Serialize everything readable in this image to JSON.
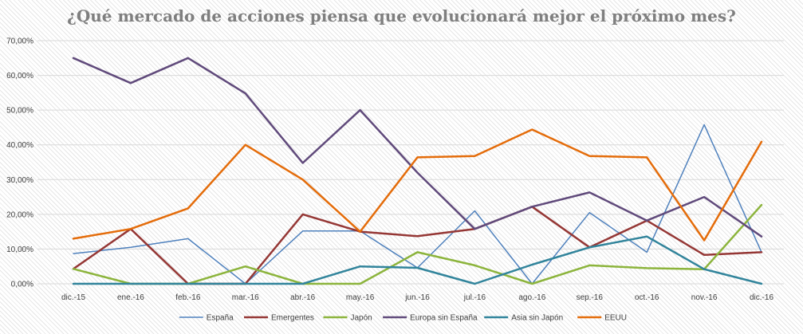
{
  "chart_data": {
    "type": "line",
    "title": "¿Qué mercado de acciones piensa que evolucionará mejor el próximo mes?",
    "xlabel": "",
    "ylabel": "",
    "ylim": [
      0,
      70
    ],
    "y_ticks": [
      "0,00%",
      "10,00%",
      "20,00%",
      "30,00%",
      "40,00%",
      "50,00%",
      "60,00%",
      "70,00%"
    ],
    "categories": [
      "dic.-15",
      "ene.-16",
      "feb.-16",
      "mar.-16",
      "abr.-16",
      "may.-16",
      "jun.-16",
      "jul.-16",
      "ago.-16",
      "sep.-16",
      "oct.-16",
      "nov.-16",
      "dic.-16"
    ],
    "grid": true,
    "legend_position": "bottom",
    "series": [
      {
        "name": "España",
        "color": "#4f81bd",
        "width": 1.5,
        "values": [
          8.7,
          10.5,
          13,
          0,
          15.2,
          15.2,
          4.6,
          21,
          0,
          20.5,
          9.1,
          45.8,
          9.1
        ]
      },
      {
        "name": "Emergentes",
        "color": "#953735",
        "width": 2.5,
        "values": [
          4.3,
          15.8,
          0,
          0,
          20,
          15,
          13.7,
          15.8,
          22.2,
          10.5,
          18.2,
          8.3,
          9.1
        ]
      },
      {
        "name": "Japón",
        "color": "#8cb43c",
        "width": 2.5,
        "values": [
          4.3,
          0,
          0,
          5,
          0,
          0,
          9.1,
          5.3,
          0,
          5.3,
          4.5,
          4.2,
          22.7
        ]
      },
      {
        "name": "Europa sin España",
        "color": "#604a7b",
        "width": 2.5,
        "values": [
          65,
          57.8,
          65,
          54.8,
          34.8,
          50,
          32,
          15.8,
          22.2,
          26.3,
          18.2,
          25,
          13.6
        ]
      },
      {
        "name": "Asia sin Japón",
        "color": "#31849b",
        "width": 2.5,
        "values": [
          0,
          0,
          0,
          0,
          0,
          5,
          4.6,
          0,
          5.5,
          10.5,
          13.6,
          4.2,
          0
        ]
      },
      {
        "name": "EEUU",
        "color": "#e46c0a",
        "width": 2.5,
        "values": [
          13,
          15.8,
          21.7,
          40,
          30,
          15,
          36.4,
          36.8,
          44.4,
          36.8,
          36.4,
          12.5,
          40.9
        ]
      }
    ]
  }
}
